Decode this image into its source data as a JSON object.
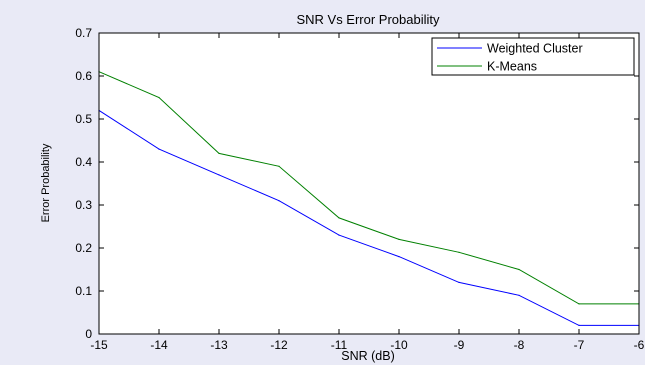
{
  "chart_data": {
    "type": "line",
    "title": "SNR Vs Error Probability",
    "xlabel": "SNR (dB)",
    "ylabel": "Error Probability",
    "x": [
      -15,
      -14,
      -13,
      -12,
      -11,
      -10,
      -9,
      -8,
      -7,
      -6
    ],
    "xlim": [
      -15,
      -6
    ],
    "ylim": [
      0,
      0.7
    ],
    "xticks": [
      "-15",
      "-14",
      "-13",
      "-12",
      "-11",
      "-10",
      "-9",
      "-8",
      "-7",
      "-6"
    ],
    "yticks": [
      "0",
      "0.1",
      "0.2",
      "0.3",
      "0.4",
      "0.5",
      "0.6",
      "0.7"
    ],
    "grid": false,
    "legend_position": "top-right",
    "series": [
      {
        "name": "Weighted Cluster",
        "color": "#0000ff",
        "values": [
          0.52,
          0.43,
          0.37,
          0.31,
          0.23,
          0.18,
          0.12,
          0.09,
          0.02,
          0.02
        ]
      },
      {
        "name": "K-Means",
        "color": "#008000",
        "values": [
          0.61,
          0.55,
          0.42,
          0.39,
          0.27,
          0.22,
          0.19,
          0.15,
          0.07,
          0.07
        ]
      }
    ]
  }
}
